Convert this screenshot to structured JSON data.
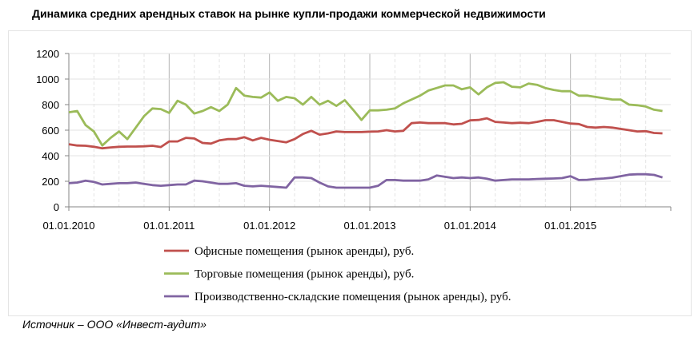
{
  "chart_data": {
    "type": "line",
    "title": "Динамика средних арендных ставок на рынке купли-продажи коммерческой недвижимости",
    "xlabel": "",
    "ylabel": "",
    "ylim": [
      0,
      1200
    ],
    "yticks": [
      0,
      200,
      400,
      600,
      800,
      1000,
      1200
    ],
    "x_start": "01.01.2010",
    "x_frequency": "monthly",
    "xtick_labels": [
      "01.01.2010",
      "01.01.2011",
      "01.01.2012",
      "01.01.2013",
      "01.01.2014",
      "01.01.2015"
    ],
    "grid": true,
    "legend_position": "bottom",
    "series": [
      {
        "name": "Офисные помещения (рынок аренды), руб.",
        "color": "#c0504d",
        "values": [
          490,
          480,
          478,
          470,
          458,
          465,
          470,
          472,
          472,
          474,
          478,
          468,
          512,
          512,
          540,
          535,
          500,
          495,
          520,
          530,
          530,
          545,
          520,
          540,
          525,
          515,
          505,
          530,
          570,
          595,
          565,
          575,
          590,
          585,
          585,
          585,
          588,
          590,
          600,
          590,
          595,
          655,
          660,
          655,
          655,
          655,
          645,
          650,
          677,
          680,
          693,
          665,
          660,
          655,
          658,
          655,
          665,
          678,
          678,
          665,
          652,
          648,
          625,
          620,
          625,
          620,
          610,
          600,
          590,
          592,
          578,
          575
        ]
      },
      {
        "name": "Торговые помещения (рынок аренды), руб.",
        "color": "#9bbb59",
        "values": [
          740,
          750,
          640,
          590,
          480,
          540,
          590,
          530,
          620,
          710,
          770,
          765,
          735,
          830,
          800,
          730,
          750,
          780,
          750,
          800,
          930,
          870,
          860,
          855,
          895,
          830,
          860,
          850,
          800,
          860,
          800,
          830,
          790,
          835,
          760,
          680,
          755,
          755,
          760,
          770,
          810,
          840,
          870,
          910,
          930,
          950,
          950,
          920,
          935,
          880,
          935,
          970,
          975,
          940,
          935,
          965,
          955,
          930,
          915,
          905,
          905,
          870,
          870,
          860,
          850,
          840,
          840,
          800,
          795,
          785,
          760,
          750
        ]
      },
      {
        "name": "Производственно-складские помещения (рынок аренды), руб.",
        "color": "#8064a2",
        "values": [
          185,
          190,
          205,
          195,
          175,
          180,
          185,
          185,
          190,
          180,
          170,
          165,
          170,
          175,
          175,
          205,
          200,
          190,
          180,
          180,
          185,
          165,
          160,
          165,
          160,
          155,
          150,
          230,
          230,
          225,
          190,
          160,
          150,
          150,
          150,
          150,
          150,
          165,
          210,
          210,
          205,
          205,
          205,
          215,
          245,
          235,
          225,
          230,
          225,
          230,
          220,
          205,
          210,
          215,
          215,
          215,
          218,
          220,
          222,
          225,
          240,
          210,
          212,
          218,
          222,
          228,
          240,
          252,
          255,
          255,
          250,
          230
        ]
      }
    ]
  },
  "source": "Источник – ООО «Инвест-аудит»"
}
